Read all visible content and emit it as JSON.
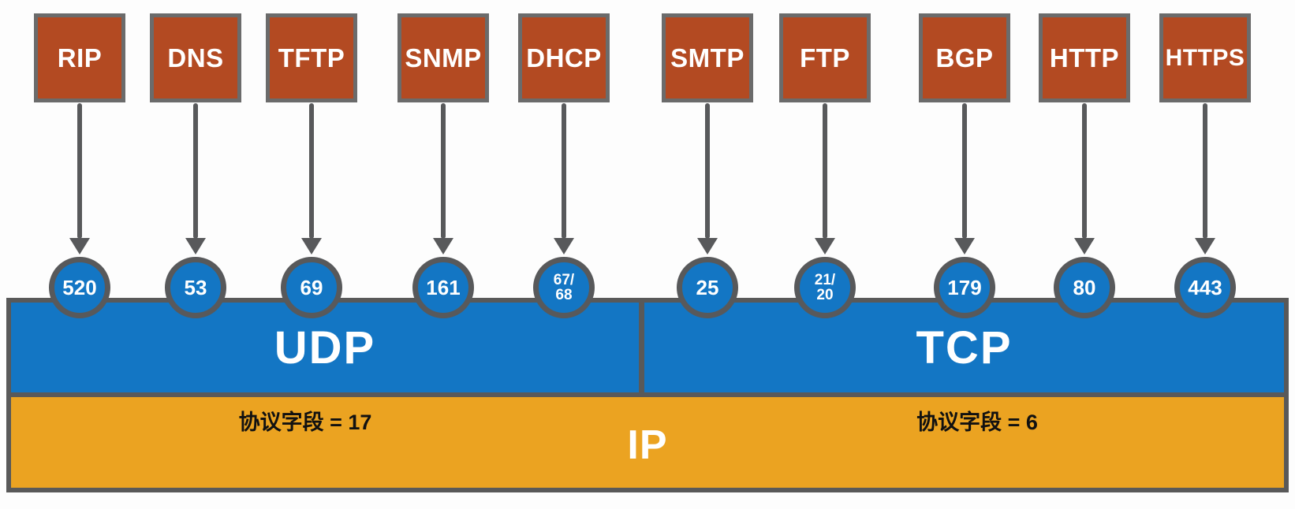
{
  "diagram": {
    "type": "network-protocol-stack",
    "colors": {
      "protocol_box": "#b34a22",
      "box_border": "#6b6b6b",
      "transport_blue": "#1376c4",
      "ip_orange": "#eba321",
      "band_border": "#595959",
      "arrow_gray": "#58595b",
      "text_light": "#ffffff",
      "text_dark": "#111111"
    },
    "columns": [
      {
        "label": "RIP",
        "port": "520",
        "transport": "UDP"
      },
      {
        "label": "DNS",
        "port": "53",
        "transport": "UDP"
      },
      {
        "label": "TFTP",
        "port": "69",
        "transport": "UDP"
      },
      {
        "label": "SNMP",
        "port": "161",
        "transport": "UDP"
      },
      {
        "label": "DHCP",
        "port": "67/\n68",
        "transport": "UDP"
      },
      {
        "label": "SMTP",
        "port": "25",
        "transport": "TCP"
      },
      {
        "label": "FTP",
        "port": "21/\n20",
        "transport": "TCP"
      },
      {
        "label": "BGP",
        "port": "179",
        "transport": "TCP"
      },
      {
        "label": "HTTP",
        "port": "80",
        "transport": "TCP"
      },
      {
        "label": "HTTPS",
        "port": "443",
        "transport": "TCP"
      }
    ],
    "layers": {
      "udp": {
        "label": "UDP",
        "protocol_field": "协议字段 = 17"
      },
      "tcp": {
        "label": "TCP",
        "protocol_field": "协议字段 = 6"
      },
      "ip": {
        "label": "IP"
      }
    }
  }
}
